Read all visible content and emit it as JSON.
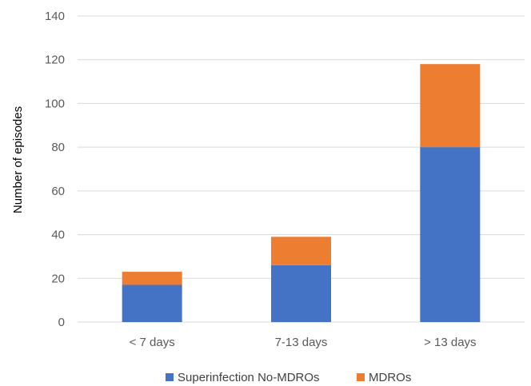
{
  "chart_data": {
    "type": "bar",
    "stacked": true,
    "categories": [
      "< 7 days",
      "7-13 days",
      "> 13 days"
    ],
    "series": [
      {
        "name": "Superinfection No-MDROs",
        "values": [
          17,
          26,
          80
        ],
        "color": "#4472C4"
      },
      {
        "name": "MDROs",
        "values": [
          6,
          13,
          38
        ],
        "color": "#ED7D31"
      }
    ],
    "title": "",
    "xlabel": "",
    "ylabel": "Number of episodes",
    "ylim": [
      0,
      140
    ],
    "yticks": [
      0,
      20,
      40,
      60,
      80,
      100,
      120,
      140
    ],
    "grid": true,
    "legend_position": "bottom"
  }
}
